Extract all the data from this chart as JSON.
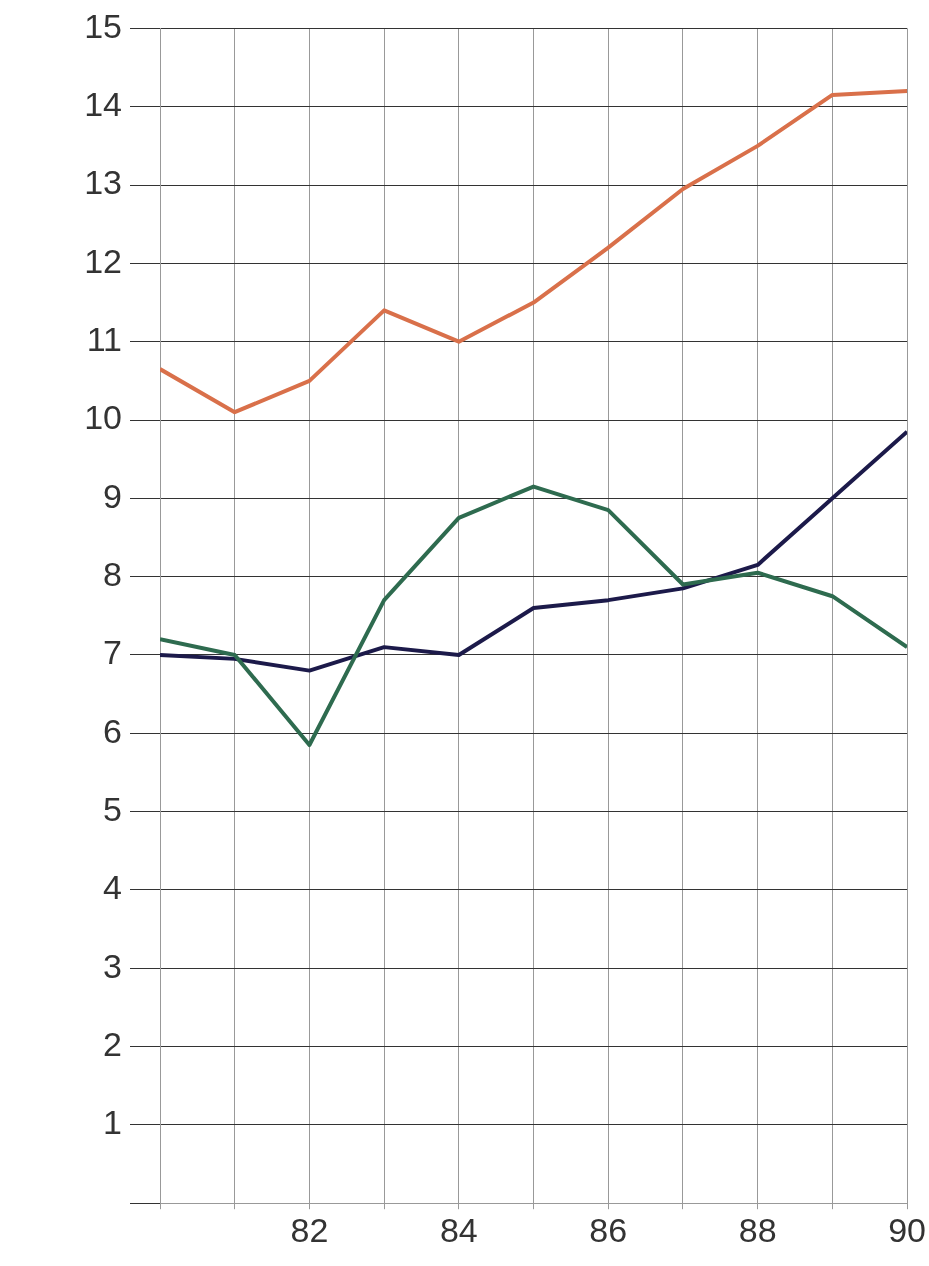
{
  "chart_data": {
    "type": "line",
    "x": [
      80,
      81,
      82,
      83,
      84,
      85,
      86,
      87,
      88,
      89,
      90
    ],
    "series": [
      {
        "color": "#d9704a",
        "values": [
          10.65,
          10.1,
          10.5,
          11.4,
          11.0,
          11.5,
          12.2,
          12.95,
          13.5,
          14.15,
          14.2
        ]
      },
      {
        "color": "#2e6b4f",
        "values": [
          7.2,
          7.0,
          5.85,
          7.7,
          8.75,
          9.15,
          8.85,
          7.9,
          8.05,
          7.75,
          7.1
        ]
      },
      {
        "color": "#1c1a4a",
        "values": [
          7.0,
          6.95,
          6.8,
          7.1,
          7.0,
          7.6,
          7.7,
          7.85,
          8.15,
          9.0,
          9.85
        ]
      }
    ],
    "xlim": [
      80,
      90
    ],
    "xticks": [
      {
        "value": 80,
        "label": null
      },
      {
        "value": 81,
        "label": null
      },
      82,
      {
        "value": 83,
        "label": null
      },
      84,
      {
        "value": 85,
        "label": null
      },
      86,
      {
        "value": 87,
        "label": null
      },
      88,
      {
        "value": 89,
        "label": null
      },
      90
    ],
    "ylim": [
      0,
      15
    ],
    "yticks": [
      {
        "value": 0,
        "label": null
      },
      1,
      2,
      3,
      4,
      5,
      6,
      7,
      8,
      9,
      10,
      11,
      12,
      13,
      14,
      15
    ],
    "grid": true,
    "marker": "none"
  }
}
